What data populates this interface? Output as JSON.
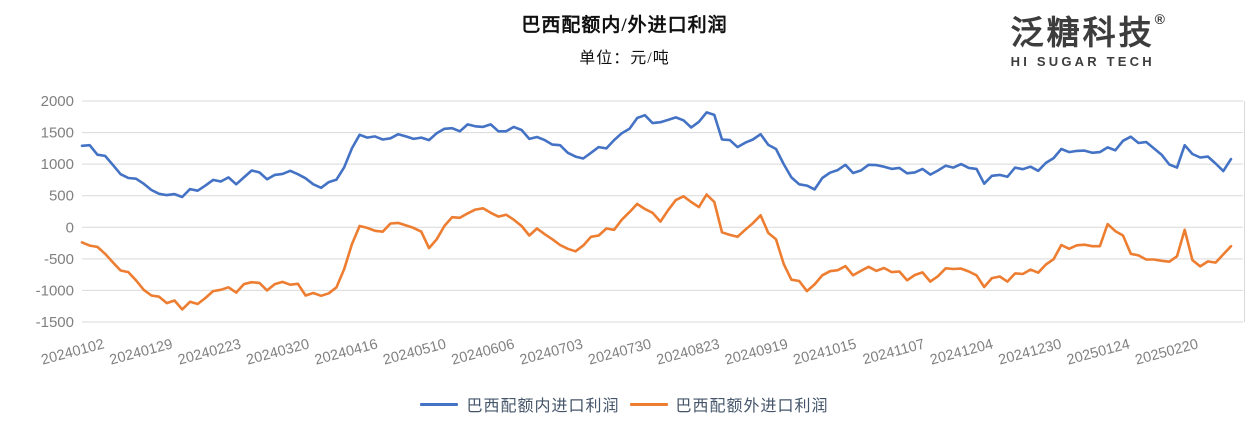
{
  "header": {
    "title": "巴西配额内/外进口利润",
    "subtitle": "单位：元/吨"
  },
  "logo": {
    "name_cn": "泛糖科技",
    "registered_mark": "®",
    "tagline": "HI SUGAR TECH"
  },
  "colors": {
    "series_in_quota": "#4472C4",
    "series_out_quota": "#ED7D31",
    "gridline": "#D9D9D9",
    "axis_label": "#808080",
    "legend_text": "#44546A",
    "title_text": "#111111",
    "logo_text": "#3D3D3D",
    "background": "#FFFFFF"
  },
  "chart_data": {
    "type": "line",
    "title": "巴西配额内/外进口利润",
    "unit_label": "单位：元/吨",
    "grid": true,
    "legend_position": "bottom",
    "ylim": [
      -1500,
      2000
    ],
    "y_ticks": [
      2000,
      1500,
      1000,
      500,
      0,
      -500,
      -1000,
      -1500
    ],
    "x_tick_labels": [
      "20240102",
      "20240129",
      "20240223",
      "20240320",
      "20240416",
      "20240510",
      "20240606",
      "20240703",
      "20240730",
      "20240823",
      "20240919",
      "20241015",
      "20241107",
      "20241204",
      "20241230",
      "20250124",
      "20250220"
    ],
    "x_range_note": "daily data 20240102 to ~20250314, sampled at ~150 evenly spaced points",
    "series": [
      {
        "name": "巴西配额内进口利润",
        "color": "#4472C4",
        "values": [
          1290,
          1300,
          1150,
          1130,
          990,
          840,
          780,
          770,
          690,
          590,
          530,
          510,
          525,
          480,
          605,
          580,
          660,
          750,
          725,
          790,
          680,
          790,
          900,
          870,
          760,
          830,
          845,
          895,
          840,
          775,
          680,
          625,
          715,
          755,
          950,
          1250,
          1465,
          1420,
          1440,
          1390,
          1410,
          1475,
          1440,
          1400,
          1420,
          1380,
          1490,
          1560,
          1570,
          1520,
          1630,
          1600,
          1590,
          1630,
          1520,
          1520,
          1590,
          1540,
          1400,
          1430,
          1380,
          1310,
          1300,
          1180,
          1120,
          1090,
          1180,
          1270,
          1250,
          1380,
          1490,
          1560,
          1730,
          1775,
          1650,
          1665,
          1700,
          1740,
          1695,
          1580,
          1670,
          1820,
          1780,
          1390,
          1380,
          1270,
          1340,
          1390,
          1475,
          1305,
          1240,
          1000,
          790,
          680,
          660,
          600,
          780,
          865,
          905,
          990,
          860,
          900,
          990,
          985,
          960,
          925,
          940,
          855,
          870,
          925,
          835,
          900,
          975,
          945,
          1000,
          940,
          925,
          690,
          815,
          830,
          800,
          945,
          920,
          960,
          895,
          1020,
          1095,
          1240,
          1190,
          1210,
          1215,
          1180,
          1190,
          1265,
          1220,
          1370,
          1435,
          1335,
          1350,
          1250,
          1150,
          995,
          945,
          1300,
          1160,
          1105,
          1120,
          1010,
          890,
          1080
        ]
      },
      {
        "name": "巴西配额外进口利润",
        "color": "#ED7D31",
        "values": [
          -240,
          -290,
          -310,
          -420,
          -555,
          -685,
          -710,
          -840,
          -990,
          -1080,
          -1100,
          -1200,
          -1160,
          -1300,
          -1180,
          -1215,
          -1120,
          -1010,
          -990,
          -950,
          -1035,
          -900,
          -870,
          -880,
          -1000,
          -900,
          -865,
          -910,
          -895,
          -1080,
          -1040,
          -1085,
          -1045,
          -950,
          -660,
          -270,
          20,
          -10,
          -55,
          -70,
          60,
          70,
          30,
          -10,
          -70,
          -330,
          -190,
          20,
          160,
          150,
          220,
          280,
          300,
          230,
          170,
          200,
          120,
          20,
          -130,
          -20,
          -110,
          -190,
          -280,
          -340,
          -380,
          -290,
          -150,
          -130,
          -20,
          -40,
          120,
          240,
          370,
          290,
          230,
          90,
          270,
          430,
          490,
          400,
          320,
          520,
          400,
          -80,
          -120,
          -150,
          -40,
          65,
          190,
          -90,
          -190,
          -580,
          -830,
          -850,
          -1010,
          -905,
          -760,
          -695,
          -680,
          -615,
          -760,
          -690,
          -625,
          -690,
          -645,
          -710,
          -700,
          -840,
          -755,
          -715,
          -860,
          -775,
          -650,
          -660,
          -655,
          -700,
          -760,
          -945,
          -805,
          -780,
          -860,
          -730,
          -740,
          -670,
          -720,
          -590,
          -505,
          -280,
          -340,
          -285,
          -275,
          -300,
          -300,
          50,
          -60,
          -130,
          -420,
          -445,
          -510,
          -510,
          -530,
          -545,
          -460,
          -40,
          -520,
          -620,
          -540,
          -560,
          -430,
          -300
        ]
      }
    ]
  }
}
